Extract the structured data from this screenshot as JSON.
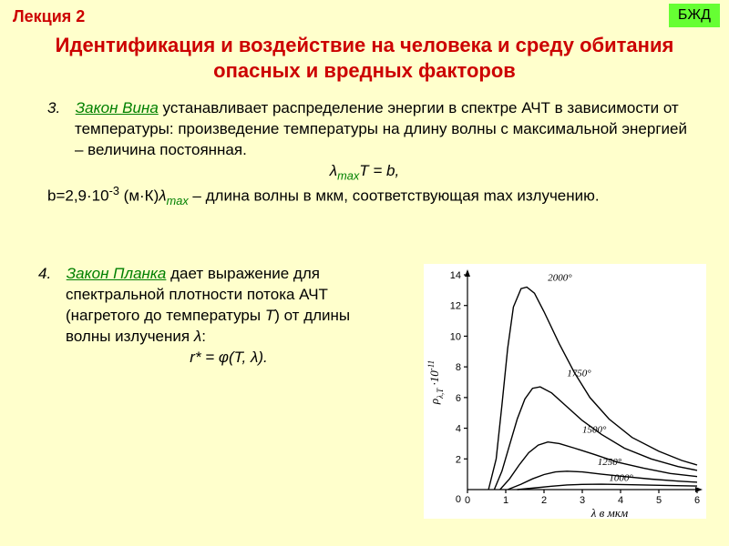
{
  "header": {
    "lecture": "Лекция 2",
    "badge": "БЖД"
  },
  "title": "Идентификация и воздействие на человека и среду обитания опасных и вредных факторов",
  "item3": {
    "num": "3.",
    "law": "Закон Вина",
    "text1": " устанавливает распределение энергии в спектре АЧТ в зависимости от температуры: произведение температуры на длину волны с максимальной энергией – величина постоянная.",
    "formula_lhs": "λ",
    "formula_sub": "max",
    "formula_rhs": "T = b,",
    "b_prefix": "b=2,9·10",
    "b_exp": "-3",
    "b_unit": " (м·К)",
    "lambda": "λ",
    "lambda_sub": "max",
    "text2": " – длина волны в мкм, соответствующая max излучению."
  },
  "item4": {
    "num": "4.",
    "law": "Закон Планка",
    "text1": " дает выражение для спектральной плотности потока АЧТ (нагретого до температуры ",
    "tvar": "T",
    "text2": ") от длины волны излучения ",
    "lvar": "λ",
    "text3": ":",
    "formula": "r* = φ(T, λ)."
  },
  "chart": {
    "type": "line",
    "background_color": "#ffffff",
    "axis_color": "#000000",
    "line_color": "#000000",
    "xlim": [
      0,
      6
    ],
    "ylim": [
      0,
      14
    ],
    "x_ticks": [
      0,
      1,
      2,
      3,
      4,
      5,
      6
    ],
    "y_ticks": [
      0,
      2,
      4,
      6,
      8,
      10,
      12,
      14
    ],
    "x_label": "λ в мкм",
    "y_label_prefix": "ρ",
    "y_label_sub": "λ,T",
    "y_label_mult": "·10",
    "y_label_exp": "-11",
    "curves": [
      {
        "label": "2000°",
        "lx": 2.1,
        "ly": 13.6,
        "points": [
          [
            0.55,
            0
          ],
          [
            0.75,
            2.0
          ],
          [
            0.9,
            5.5
          ],
          [
            1.05,
            9.2
          ],
          [
            1.2,
            11.9
          ],
          [
            1.4,
            13.1
          ],
          [
            1.55,
            13.2
          ],
          [
            1.75,
            12.8
          ],
          [
            2.0,
            11.6
          ],
          [
            2.4,
            9.5
          ],
          [
            2.8,
            7.6
          ],
          [
            3.2,
            6.0
          ],
          [
            3.7,
            4.6
          ],
          [
            4.3,
            3.4
          ],
          [
            5.0,
            2.5
          ],
          [
            5.6,
            1.9
          ],
          [
            6.0,
            1.6
          ]
        ]
      },
      {
        "label": "1750°",
        "lx": 2.6,
        "ly": 7.4,
        "points": [
          [
            0.7,
            0
          ],
          [
            0.9,
            1.2
          ],
          [
            1.1,
            2.9
          ],
          [
            1.3,
            4.6
          ],
          [
            1.5,
            5.9
          ],
          [
            1.7,
            6.6
          ],
          [
            1.9,
            6.7
          ],
          [
            2.2,
            6.3
          ],
          [
            2.6,
            5.4
          ],
          [
            3.0,
            4.5
          ],
          [
            3.5,
            3.6
          ],
          [
            4.1,
            2.7
          ],
          [
            4.8,
            2.0
          ],
          [
            5.5,
            1.5
          ],
          [
            6.0,
            1.25
          ]
        ]
      },
      {
        "label": "1500°",
        "lx": 3.0,
        "ly": 3.7,
        "points": [
          [
            0.85,
            0
          ],
          [
            1.1,
            0.7
          ],
          [
            1.35,
            1.6
          ],
          [
            1.6,
            2.4
          ],
          [
            1.85,
            2.9
          ],
          [
            2.1,
            3.1
          ],
          [
            2.4,
            3.0
          ],
          [
            2.8,
            2.7
          ],
          [
            3.3,
            2.3
          ],
          [
            3.9,
            1.8
          ],
          [
            4.6,
            1.4
          ],
          [
            5.3,
            1.05
          ],
          [
            6.0,
            0.85
          ]
        ]
      },
      {
        "label": "1250°",
        "lx": 3.4,
        "ly": 1.6,
        "points": [
          [
            1.05,
            0
          ],
          [
            1.4,
            0.35
          ],
          [
            1.7,
            0.7
          ],
          [
            2.0,
            0.98
          ],
          [
            2.3,
            1.15
          ],
          [
            2.6,
            1.2
          ],
          [
            3.0,
            1.15
          ],
          [
            3.5,
            1.0
          ],
          [
            4.1,
            0.85
          ],
          [
            4.8,
            0.68
          ],
          [
            5.5,
            0.55
          ],
          [
            6.0,
            0.48
          ]
        ]
      },
      {
        "label": "1000°",
        "lx": 3.7,
        "ly": 0.55,
        "points": [
          [
            1.3,
            0
          ],
          [
            1.8,
            0.12
          ],
          [
            2.2,
            0.22
          ],
          [
            2.6,
            0.3
          ],
          [
            3.0,
            0.34
          ],
          [
            3.5,
            0.35
          ],
          [
            4.0,
            0.33
          ],
          [
            4.6,
            0.3
          ],
          [
            5.3,
            0.26
          ],
          [
            6.0,
            0.23
          ]
        ]
      }
    ]
  }
}
